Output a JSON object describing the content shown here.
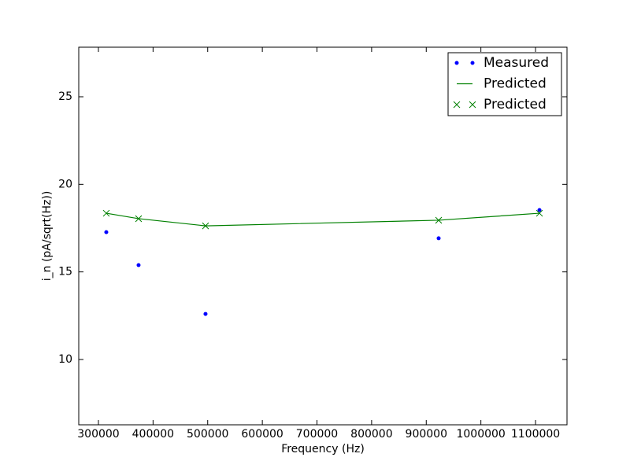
{
  "chart_data": {
    "type": "line",
    "xlabel": "Frequency (Hz)",
    "ylabel": "i_n (pA/sqrt(Hz))",
    "x": [
      314400,
      373500,
      496000,
      922700,
      1107200
    ],
    "series": [
      {
        "name": "Measured",
        "color": "#0000ff",
        "marker": "dot",
        "linestyle": "none",
        "values": [
          17.27,
          15.39,
          12.6,
          16.92,
          18.53
        ]
      },
      {
        "name": "Predicted",
        "color": "#008000",
        "marker": "none",
        "linestyle": "solid",
        "values": [
          18.35,
          18.04,
          17.63,
          17.95,
          18.35
        ]
      },
      {
        "name": "Predicted",
        "color": "#008000",
        "marker": "x",
        "linestyle": "none",
        "values": [
          18.35,
          18.04,
          17.63,
          17.95,
          18.35
        ]
      }
    ],
    "xlim": [
      264000,
      1157600
    ],
    "xticks": [
      300000,
      400000,
      500000,
      600000,
      700000,
      800000,
      900000,
      1000000,
      1100000
    ],
    "ylim": [
      6.27,
      27.83
    ],
    "yticks": [
      10,
      15,
      20,
      25
    ],
    "grid": false,
    "legend": "upper right"
  }
}
